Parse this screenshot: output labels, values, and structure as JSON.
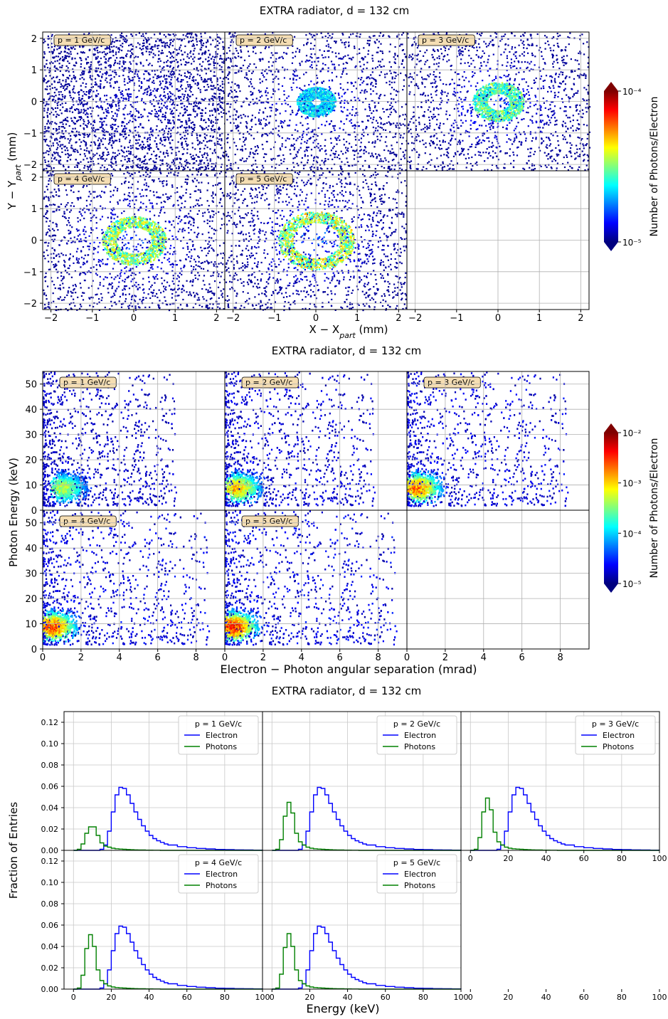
{
  "figure": {
    "colormap_colors": [
      "#00007f",
      "#0000ff",
      "#007fff",
      "#00ffff",
      "#7fff7f",
      "#ffff00",
      "#ff7f00",
      "#ff0000",
      "#7f0000"
    ]
  },
  "chart_data": [
    {
      "id": "spatial",
      "type": "heatmap",
      "title": "EXTRA radiator, d = 132 cm",
      "xlabel": "X − X",
      "xlabel_sub": "part",
      "xlabel_unit": " (mm)",
      "ylabel": "Y − Y",
      "ylabel_sub": "part",
      "ylabel_unit": " (mm)",
      "xlim": [
        -2.2,
        2.2
      ],
      "ylim": [
        -2.2,
        2.2
      ],
      "xticks": [
        -2,
        -1,
        0,
        1,
        2
      ],
      "yticks": [
        -2,
        -1,
        0,
        1,
        2
      ],
      "grid": true,
      "colorbar": {
        "label": "Number of Photons/Electron",
        "scale": "log",
        "min": 1e-05,
        "max": 0.0001,
        "tick_labels": [
          "10⁻⁴",
          "10⁻⁵"
        ],
        "tick_values": [
          0.0001,
          1e-05
        ]
      },
      "panels": [
        {
          "label": "p = 1 GeV/c",
          "momentum_gev": 1,
          "ring_radius_mm": 0,
          "intensity": 0.22
        },
        {
          "label": "p = 2 GeV/c",
          "momentum_gev": 2,
          "ring_radius_mm": 0.3,
          "intensity": 0.45
        },
        {
          "label": "p = 3 GeV/c",
          "momentum_gev": 3,
          "ring_radius_mm": 0.45,
          "intensity": 0.6
        },
        {
          "label": "p = 4 GeV/c",
          "momentum_gev": 4,
          "ring_radius_mm": 0.6,
          "intensity": 0.68
        },
        {
          "label": "p = 5 GeV/c",
          "momentum_gev": 5,
          "ring_radius_mm": 0.75,
          "intensity": 0.72
        }
      ]
    },
    {
      "id": "angular",
      "type": "heatmap",
      "title": "EXTRA radiator, d = 132 cm",
      "xlabel": "Electron − Photon angular separation (mrad)",
      "ylabel": "Photon Energy (keV)",
      "xlim": [
        0,
        9.5
      ],
      "ylim": [
        0,
        55
      ],
      "xticks": [
        0,
        2,
        4,
        6,
        8
      ],
      "yticks": [
        0,
        10,
        20,
        30,
        40,
        50
      ],
      "grid": true,
      "colorbar": {
        "label": "Number of Photons/Electron",
        "scale": "log",
        "min": 1e-05,
        "max": 0.01,
        "tick_labels": [
          "10⁻²",
          "10⁻³",
          "10⁻⁴",
          "10⁻⁵"
        ],
        "tick_values": [
          0.01,
          0.001,
          0.0001,
          1e-05
        ]
      },
      "panels": [
        {
          "label": "p = 1 GeV/c",
          "momentum_gev": 1,
          "peak_mrad": 1.0,
          "peak_kev": 9,
          "intensity": 0.55
        },
        {
          "label": "p = 2 GeV/c",
          "momentum_gev": 2,
          "peak_mrad": 0.6,
          "peak_kev": 9,
          "intensity": 0.7
        },
        {
          "label": "p = 3 GeV/c",
          "momentum_gev": 3,
          "peak_mrad": 0.5,
          "peak_kev": 9,
          "intensity": 0.8
        },
        {
          "label": "p = 4 GeV/c",
          "momentum_gev": 4,
          "peak_mrad": 0.45,
          "peak_kev": 9,
          "intensity": 0.85
        },
        {
          "label": "p = 5 GeV/c",
          "momentum_gev": 5,
          "peak_mrad": 0.4,
          "peak_kev": 9,
          "intensity": 0.9
        }
      ]
    },
    {
      "id": "energy",
      "type": "line",
      "title": "EXTRA radiator, d = 132 cm",
      "xlabel": "Energy (keV)",
      "ylabel": "Fraction of Entries",
      "xlim": [
        -5,
        100
      ],
      "ylim": [
        0,
        0.13
      ],
      "xticks": [
        0,
        20,
        40,
        60,
        80,
        100
      ],
      "yticks": [
        0.0,
        0.02,
        0.04,
        0.06,
        0.08,
        0.1,
        0.12
      ],
      "ytick_labels": [
        "0.00",
        "0.02",
        "0.04",
        "0.06",
        "0.08",
        "0.10",
        "0.12"
      ],
      "grid": true,
      "legend_placement": "top-right",
      "series_colors": {
        "Electron": "#0000ff",
        "Photons": "#008000"
      },
      "x": [
        0,
        2,
        4,
        6,
        8,
        10,
        12,
        14,
        16,
        18,
        20,
        22,
        24,
        26,
        28,
        30,
        32,
        34,
        36,
        38,
        40,
        42,
        44,
        46,
        48,
        50,
        55,
        60,
        65,
        70,
        75,
        80,
        85,
        90,
        95,
        100
      ],
      "panels": [
        {
          "label": "p = 1 GeV/c",
          "series": [
            {
              "name": "Electron",
              "values": [
                0,
                0,
                0,
                0,
                0,
                0,
                0,
                0.001,
                0.005,
                0.018,
                0.036,
                0.052,
                0.059,
                0.058,
                0.052,
                0.044,
                0.036,
                0.029,
                0.023,
                0.018,
                0.014,
                0.011,
                0.009,
                0.0075,
                0.006,
                0.005,
                0.0035,
                0.0025,
                0.0018,
                0.0013,
                0.0009,
                0.0007,
                0.0005,
                0.0003,
                0.0002,
                0.0001
              ]
            },
            {
              "name": "Photons",
              "values": [
                0,
                0.001,
                0.006,
                0.016,
                0.022,
                0.022,
                0.014,
                0.007,
                0.004,
                0.003,
                0.002,
                0.0015,
                0.0012,
                0.001,
                0.0008,
                0.0006,
                0.0005,
                0.0004,
                0.0003,
                0.0002,
                0.0002,
                0.0001,
                0.0001,
                0,
                0,
                0,
                0,
                0,
                0,
                0,
                0,
                0,
                0,
                0,
                0,
                0
              ]
            }
          ]
        },
        {
          "label": "p = 2 GeV/c",
          "series": [
            {
              "name": "Electron",
              "values": [
                0,
                0,
                0,
                0,
                0,
                0,
                0,
                0.001,
                0.005,
                0.018,
                0.036,
                0.052,
                0.059,
                0.058,
                0.052,
                0.044,
                0.036,
                0.029,
                0.023,
                0.018,
                0.014,
                0.011,
                0.009,
                0.0075,
                0.006,
                0.005,
                0.0035,
                0.0025,
                0.0018,
                0.0013,
                0.0009,
                0.0007,
                0.0005,
                0.0003,
                0.0002,
                0.0001
              ]
            },
            {
              "name": "Photons",
              "values": [
                0,
                0.001,
                0.01,
                0.032,
                0.045,
                0.035,
                0.016,
                0.008,
                0.005,
                0.003,
                0.002,
                0.0015,
                0.0012,
                0.001,
                0.0008,
                0.0006,
                0.0005,
                0.0004,
                0.0003,
                0.0002,
                0.0002,
                0.0001,
                0.0001,
                0,
                0,
                0,
                0,
                0,
                0,
                0,
                0,
                0,
                0,
                0,
                0,
                0
              ]
            }
          ]
        },
        {
          "label": "p = 3 GeV/c",
          "series": [
            {
              "name": "Electron",
              "values": [
                0,
                0,
                0,
                0,
                0,
                0,
                0,
                0.001,
                0.005,
                0.018,
                0.036,
                0.052,
                0.059,
                0.058,
                0.052,
                0.044,
                0.036,
                0.029,
                0.023,
                0.018,
                0.014,
                0.011,
                0.009,
                0.0075,
                0.006,
                0.005,
                0.0035,
                0.0025,
                0.0018,
                0.0013,
                0.0009,
                0.0007,
                0.0005,
                0.0003,
                0.0002,
                0.0001
              ]
            },
            {
              "name": "Photons",
              "values": [
                0,
                0.001,
                0.012,
                0.036,
                0.049,
                0.038,
                0.017,
                0.008,
                0.005,
                0.003,
                0.002,
                0.0015,
                0.0012,
                0.001,
                0.0008,
                0.0006,
                0.0005,
                0.0004,
                0.0003,
                0.0002,
                0.0002,
                0.0001,
                0.0001,
                0,
                0,
                0,
                0,
                0,
                0,
                0,
                0,
                0,
                0,
                0,
                0,
                0
              ]
            }
          ]
        },
        {
          "label": "p = 4 GeV/c",
          "series": [
            {
              "name": "Electron",
              "values": [
                0,
                0,
                0,
                0,
                0,
                0,
                0,
                0.001,
                0.005,
                0.018,
                0.036,
                0.052,
                0.059,
                0.058,
                0.052,
                0.044,
                0.036,
                0.029,
                0.023,
                0.018,
                0.014,
                0.011,
                0.009,
                0.0075,
                0.006,
                0.005,
                0.0035,
                0.0025,
                0.0018,
                0.0013,
                0.0009,
                0.0007,
                0.0005,
                0.0003,
                0.0002,
                0.0001
              ]
            },
            {
              "name": "Photons",
              "values": [
                0,
                0.001,
                0.013,
                0.038,
                0.051,
                0.04,
                0.018,
                0.008,
                0.005,
                0.003,
                0.002,
                0.0015,
                0.0012,
                0.001,
                0.0008,
                0.0006,
                0.0005,
                0.0004,
                0.0003,
                0.0002,
                0.0002,
                0.0001,
                0.0001,
                0,
                0,
                0,
                0,
                0,
                0,
                0,
                0,
                0,
                0,
                0,
                0,
                0
              ]
            }
          ]
        },
        {
          "label": "p = 5 GeV/c",
          "series": [
            {
              "name": "Electron",
              "values": [
                0,
                0,
                0,
                0,
                0,
                0,
                0,
                0.001,
                0.005,
                0.018,
                0.036,
                0.052,
                0.059,
                0.058,
                0.052,
                0.044,
                0.036,
                0.029,
                0.023,
                0.018,
                0.014,
                0.011,
                0.009,
                0.0075,
                0.006,
                0.005,
                0.0035,
                0.0025,
                0.0018,
                0.0013,
                0.0009,
                0.0007,
                0.0005,
                0.0003,
                0.0002,
                0.0001
              ]
            },
            {
              "name": "Photons",
              "values": [
                0,
                0.001,
                0.014,
                0.039,
                0.052,
                0.04,
                0.018,
                0.008,
                0.005,
                0.003,
                0.002,
                0.0015,
                0.0012,
                0.001,
                0.0008,
                0.0006,
                0.0005,
                0.0004,
                0.0003,
                0.0002,
                0.0002,
                0.0001,
                0.0001,
                0,
                0,
                0,
                0,
                0,
                0,
                0,
                0,
                0,
                0,
                0,
                0,
                0
              ]
            }
          ]
        }
      ]
    }
  ]
}
